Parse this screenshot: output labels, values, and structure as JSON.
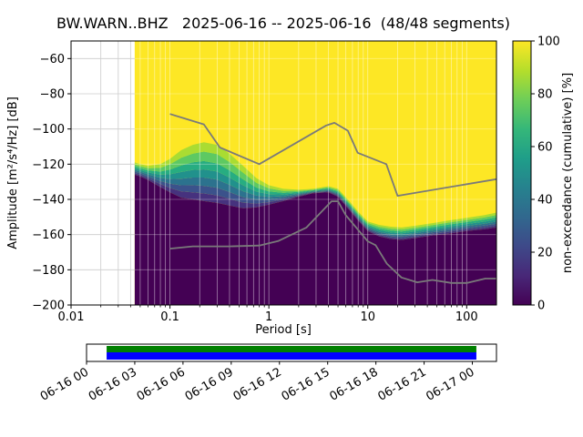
{
  "title": "BW.WARN..BHZ   2025-06-16 -- 2025-06-16  (48/48 segments)",
  "chart_data": {
    "type": "heatmap",
    "title": "BW.WARN..BHZ   2025-06-16 -- 2025-06-16  (48/48 segments)",
    "xlabel": "Period [s]",
    "ylabel": "Amplitude [m²/s⁴/Hz] [dB]",
    "colorbar_label": "non-exceedance (cumulative) [%]",
    "x_scale": "log",
    "xlim": [
      0.01,
      200
    ],
    "ylim": [
      -200,
      -50
    ],
    "x_ticks": [
      0.01,
      0.1,
      1,
      10,
      100
    ],
    "x_tick_labels": [
      "0.01",
      "0.1",
      "1",
      "10",
      "100"
    ],
    "y_ticks": [
      -60,
      -80,
      -100,
      -120,
      -140,
      -160,
      -180,
      -200
    ],
    "y_tick_labels": [
      "−60",
      "−80",
      "−100",
      "−120",
      "−140",
      "−160",
      "−180",
      "−200"
    ],
    "colorbar_ticks": [
      0,
      20,
      40,
      60,
      80,
      100
    ],
    "colorbar_stops": [
      "#440154",
      "#482878",
      "#3e4989",
      "#31688e",
      "#26828e",
      "#1f9e89",
      "#35b779",
      "#6ece58",
      "#b5de2b",
      "#fde725"
    ],
    "min_color": "#440154",
    "max_color": "#fde725",
    "band_levels": [
      0,
      0.13,
      0.26,
      0.4,
      0.54,
      0.68,
      0.84,
      1.0
    ],
    "band_colors": [
      "#46327e",
      "#3b528b",
      "#2c728e",
      "#21918c",
      "#27ad81",
      "#5ec962",
      "#aadc32"
    ],
    "distribution": {
      "periods": [
        0.044,
        0.05,
        0.06,
        0.08,
        0.1,
        0.13,
        0.17,
        0.22,
        0.3,
        0.4,
        0.55,
        0.75,
        1,
        1.4,
        2,
        2.8,
        4,
        5,
        6.5,
        8,
        10,
        13,
        17,
        22,
        30,
        45,
        65,
        100,
        150,
        200
      ],
      "min_db": [
        -126,
        -127,
        -129,
        -133,
        -136,
        -139,
        -140,
        -141,
        -142,
        -143.5,
        -145,
        -144.5,
        -143,
        -141,
        -138.5,
        -136.5,
        -136,
        -138.5,
        -146,
        -152,
        -158,
        -161,
        -162.5,
        -163,
        -162,
        -160.5,
        -159.5,
        -158,
        -157,
        -156
      ],
      "max_db": [
        -119,
        -120,
        -121,
        -120,
        -117,
        -112,
        -109,
        -107.5,
        -109,
        -114,
        -121,
        -128,
        -132,
        -134,
        -134.5,
        -134,
        -132.5,
        -134,
        -141,
        -147,
        -152.5,
        -154.5,
        -155.5,
        -156,
        -155,
        -153.5,
        -152,
        -150.5,
        -149,
        -147.5
      ]
    },
    "noise_models": {
      "color": "#7a7a7a",
      "nhnm": [
        [
          0.1,
          -91.5
        ],
        [
          0.22,
          -97.4
        ],
        [
          0.32,
          -110.5
        ],
        [
          0.8,
          -120
        ],
        [
          3.8,
          -98
        ],
        [
          4.6,
          -96.5
        ],
        [
          6.3,
          -101
        ],
        [
          7.9,
          -113.5
        ],
        [
          15.4,
          -120
        ],
        [
          20,
          -138
        ],
        [
          200,
          -128.5
        ]
      ],
      "nlnm": [
        [
          0.1,
          -168
        ],
        [
          0.17,
          -166.7
        ],
        [
          0.4,
          -166.7
        ],
        [
          0.8,
          -166.2
        ],
        [
          1.24,
          -163.7
        ],
        [
          2.4,
          -156
        ],
        [
          4.3,
          -141.1
        ],
        [
          5,
          -141.1
        ],
        [
          6,
          -149
        ],
        [
          10,
          -163.8
        ],
        [
          12,
          -166
        ],
        [
          15.6,
          -176.5
        ],
        [
          21.9,
          -184.4
        ],
        [
          31.6,
          -187.1
        ],
        [
          45,
          -185.8
        ],
        [
          70,
          -187.5
        ],
        [
          101,
          -187.5
        ],
        [
          154,
          -185
        ],
        [
          200,
          -185
        ]
      ]
    }
  },
  "timeline": {
    "labels": [
      "06-16 00",
      "06-16 03",
      "06-16 06",
      "06-16 09",
      "06-16 12",
      "06-16 15",
      "06-16 18",
      "06-16 21",
      "06-17 00"
    ],
    "tick_hours": [
      0,
      3,
      6,
      9,
      12,
      15,
      18,
      21,
      24
    ],
    "axis_hours": [
      0,
      25.5
    ],
    "coverage_hours": [
      1.25,
      24.25
    ],
    "availability_color": "#008000",
    "coverage_color": "#0000ff"
  }
}
